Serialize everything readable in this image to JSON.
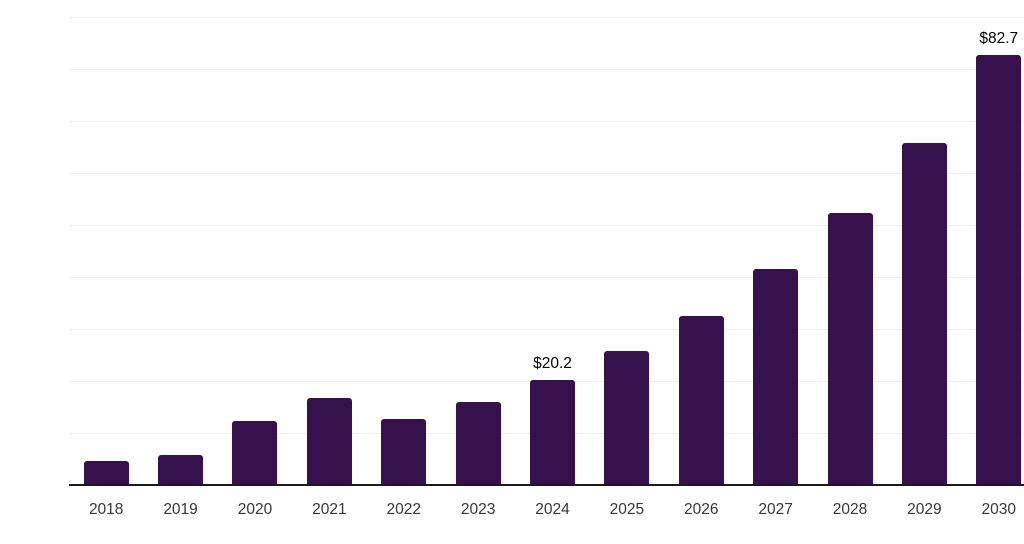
{
  "chart_data": {
    "type": "bar",
    "title": "",
    "xlabel": "",
    "ylabel": "",
    "categories": [
      "2018",
      "2019",
      "2020",
      "2021",
      "2022",
      "2023",
      "2024",
      "2025",
      "2026",
      "2027",
      "2028",
      "2029",
      "2030"
    ],
    "values": [
      4.6,
      5.8,
      12.3,
      16.7,
      12.7,
      16.0,
      20.2,
      25.8,
      32.5,
      41.5,
      52.4,
      65.8,
      82.7
    ],
    "value_labels": [
      null,
      null,
      null,
      null,
      null,
      null,
      "$20.2",
      null,
      null,
      null,
      null,
      null,
      "$82.7"
    ],
    "ylim": [
      0,
      90
    ],
    "grid_interval": 10,
    "grid": "horizontal",
    "legend": "none",
    "y_axis_ticks_visible": false,
    "colors": {
      "bar": "#36114E",
      "gridline": "#EFEFEF",
      "axis_line": "#1A1A1A",
      "tick_label": "#373737",
      "value_label": "#000000",
      "background": "#FFFFFF"
    }
  }
}
